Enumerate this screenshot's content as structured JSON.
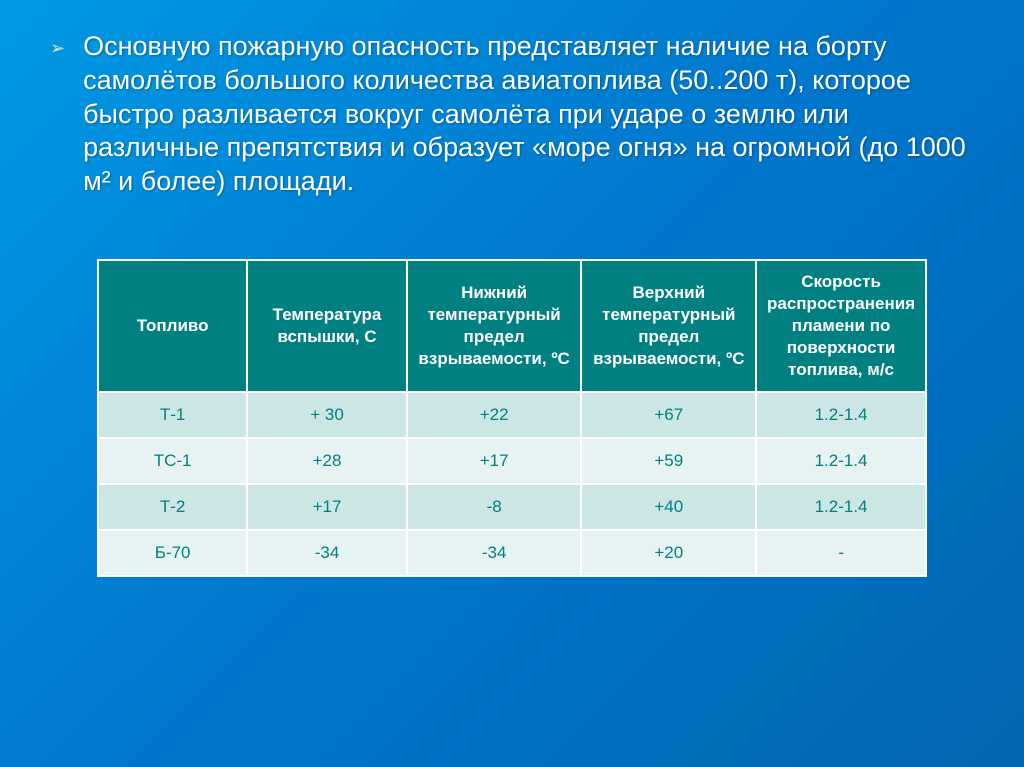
{
  "bullet": {
    "text": "Основную пожарную опасность представляет наличие на борту самолётов большого количества авиатоплива (50..200 т), которое быстро разливается вокруг самолёта при ударе о землю или различные препятствия и образует «море огня» на огромной (до 1000 м² и более) площади."
  },
  "table": {
    "columns": [
      "Топливо",
      "Температура вспышки, С",
      "Нижний температурный предел взрываемости, ºС",
      "Верхний температурный предел взрываемости, ºС",
      "Скорость распространения пламени по поверхности топлива, м/с"
    ],
    "rows": [
      [
        "Т-1",
        "+ 30",
        "+22",
        "+67",
        "1.2-1.4"
      ],
      [
        "ТС-1",
        "+28",
        "+17",
        "+59",
        "1.2-1.4"
      ],
      [
        "Т-2",
        "+17",
        "-8",
        "+40",
        "1.2-1.4"
      ],
      [
        "Б-70",
        "-34",
        "-34",
        "+20",
        "-"
      ]
    ],
    "header_bg": "#008080",
    "header_fg": "#ffffff",
    "row_alt_a": "#cce5e5",
    "row_alt_b": "#e7f2f2",
    "cell_fg": "#008080",
    "header_fontsize": 17,
    "cell_fontsize": 17
  },
  "background": {
    "gradient_start": "#0099e5",
    "gradient_mid": "#0077cc",
    "gradient_end": "#0066b3"
  }
}
